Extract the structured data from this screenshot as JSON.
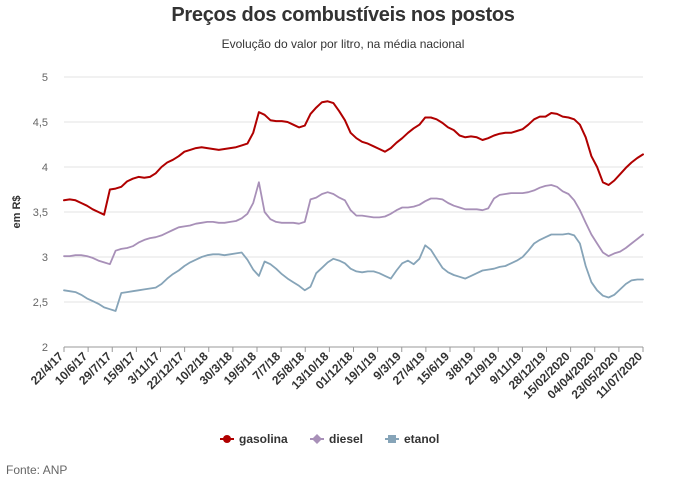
{
  "chart_data": {
    "type": "line",
    "title": "Preços dos combustíveis nos postos",
    "subtitle": "Evolução do valor por litro, na média nacional",
    "ylabel": "em R$",
    "xlabel": "",
    "ylim": [
      2,
      5
    ],
    "y_ticks": [
      "2",
      "2,5",
      "3",
      "3,5",
      "4",
      "4,5",
      "5"
    ],
    "y_tick_values": [
      2,
      2.5,
      3,
      3.5,
      4,
      4.5,
      5
    ],
    "x_ticks": [
      "22/4/17",
      "10/6/17",
      "29/7/17",
      "15/9/17",
      "3/11/17",
      "22/12/17",
      "10/2/18",
      "30/3/18",
      "19/5/18",
      "7/7/18",
      "25/8/18",
      "13/10/18",
      "01/12/18",
      "19/1/19",
      "9/3/19",
      "27/4/19",
      "15/6/19",
      "3/8/19",
      "21/9/19",
      "9/11/19",
      "28/12/19",
      "15/02/2020",
      "04/04/2020",
      "23/05/2020",
      "11/07/2020"
    ],
    "grid": true,
    "legend_position": "bottom",
    "source": "Fonte: ANP",
    "series": [
      {
        "name": "gasolina",
        "color": "#b00000",
        "marker": "circle",
        "values": [
          3.63,
          3.64,
          3.63,
          3.6,
          3.57,
          3.53,
          3.5,
          3.47,
          3.75,
          3.76,
          3.78,
          3.84,
          3.87,
          3.89,
          3.88,
          3.89,
          3.93,
          4.0,
          4.05,
          4.08,
          4.12,
          4.17,
          4.19,
          4.21,
          4.22,
          4.21,
          4.2,
          4.19,
          4.2,
          4.21,
          4.22,
          4.24,
          4.26,
          4.38,
          4.61,
          4.58,
          4.52,
          4.51,
          4.51,
          4.5,
          4.47,
          4.44,
          4.46,
          4.59,
          4.66,
          4.72,
          4.73,
          4.71,
          4.62,
          4.52,
          4.38,
          4.32,
          4.28,
          4.26,
          4.23,
          4.2,
          4.17,
          4.21,
          4.27,
          4.32,
          4.38,
          4.43,
          4.47,
          4.55,
          4.55,
          4.53,
          4.49,
          4.44,
          4.41,
          4.35,
          4.33,
          4.34,
          4.33,
          4.3,
          4.32,
          4.35,
          4.37,
          4.38,
          4.38,
          4.4,
          4.42,
          4.47,
          4.53,
          4.56,
          4.56,
          4.6,
          4.59,
          4.56,
          4.55,
          4.53,
          4.47,
          4.33,
          4.12,
          4.0,
          3.83,
          3.8,
          3.85,
          3.92,
          3.99,
          4.05,
          4.1,
          4.14
        ]
      },
      {
        "name": "diesel",
        "color": "#a890b8",
        "marker": "diamond",
        "values": [
          3.01,
          3.01,
          3.02,
          3.02,
          3.01,
          2.99,
          2.96,
          2.94,
          2.92,
          3.07,
          3.09,
          3.1,
          3.12,
          3.16,
          3.19,
          3.21,
          3.22,
          3.24,
          3.27,
          3.3,
          3.33,
          3.34,
          3.35,
          3.37,
          3.38,
          3.39,
          3.39,
          3.38,
          3.38,
          3.39,
          3.4,
          3.43,
          3.48,
          3.6,
          3.83,
          3.5,
          3.42,
          3.39,
          3.38,
          3.38,
          3.38,
          3.37,
          3.39,
          3.64,
          3.66,
          3.7,
          3.72,
          3.7,
          3.66,
          3.63,
          3.52,
          3.46,
          3.46,
          3.45,
          3.44,
          3.44,
          3.45,
          3.48,
          3.52,
          3.55,
          3.55,
          3.56,
          3.58,
          3.62,
          3.65,
          3.65,
          3.64,
          3.6,
          3.57,
          3.55,
          3.53,
          3.53,
          3.53,
          3.52,
          3.54,
          3.65,
          3.69,
          3.7,
          3.71,
          3.71,
          3.71,
          3.72,
          3.74,
          3.77,
          3.79,
          3.8,
          3.78,
          3.73,
          3.7,
          3.63,
          3.52,
          3.38,
          3.25,
          3.15,
          3.05,
          3.01,
          3.04,
          3.06,
          3.1,
          3.15,
          3.2,
          3.25
        ]
      },
      {
        "name": "etanol",
        "color": "#86a4b8",
        "marker": "square",
        "values": [
          2.63,
          2.62,
          2.61,
          2.58,
          2.54,
          2.51,
          2.48,
          2.44,
          2.42,
          2.4,
          2.6,
          2.61,
          2.62,
          2.63,
          2.64,
          2.65,
          2.66,
          2.7,
          2.76,
          2.81,
          2.85,
          2.9,
          2.94,
          2.97,
          3.0,
          3.02,
          3.03,
          3.03,
          3.02,
          3.03,
          3.04,
          3.05,
          2.97,
          2.86,
          2.79,
          2.95,
          2.92,
          2.87,
          2.81,
          2.76,
          2.72,
          2.68,
          2.63,
          2.67,
          2.82,
          2.88,
          2.94,
          2.98,
          2.96,
          2.93,
          2.87,
          2.84,
          2.83,
          2.84,
          2.84,
          2.82,
          2.79,
          2.76,
          2.85,
          2.93,
          2.96,
          2.92,
          2.98,
          3.13,
          3.08,
          2.98,
          2.88,
          2.83,
          2.8,
          2.78,
          2.76,
          2.79,
          2.82,
          2.85,
          2.86,
          2.87,
          2.89,
          2.9,
          2.93,
          2.96,
          3.0,
          3.07,
          3.15,
          3.19,
          3.22,
          3.25,
          3.25,
          3.25,
          3.26,
          3.24,
          3.15,
          2.9,
          2.72,
          2.63,
          2.57,
          2.55,
          2.58,
          2.64,
          2.7,
          2.74,
          2.75,
          2.75
        ]
      }
    ]
  }
}
